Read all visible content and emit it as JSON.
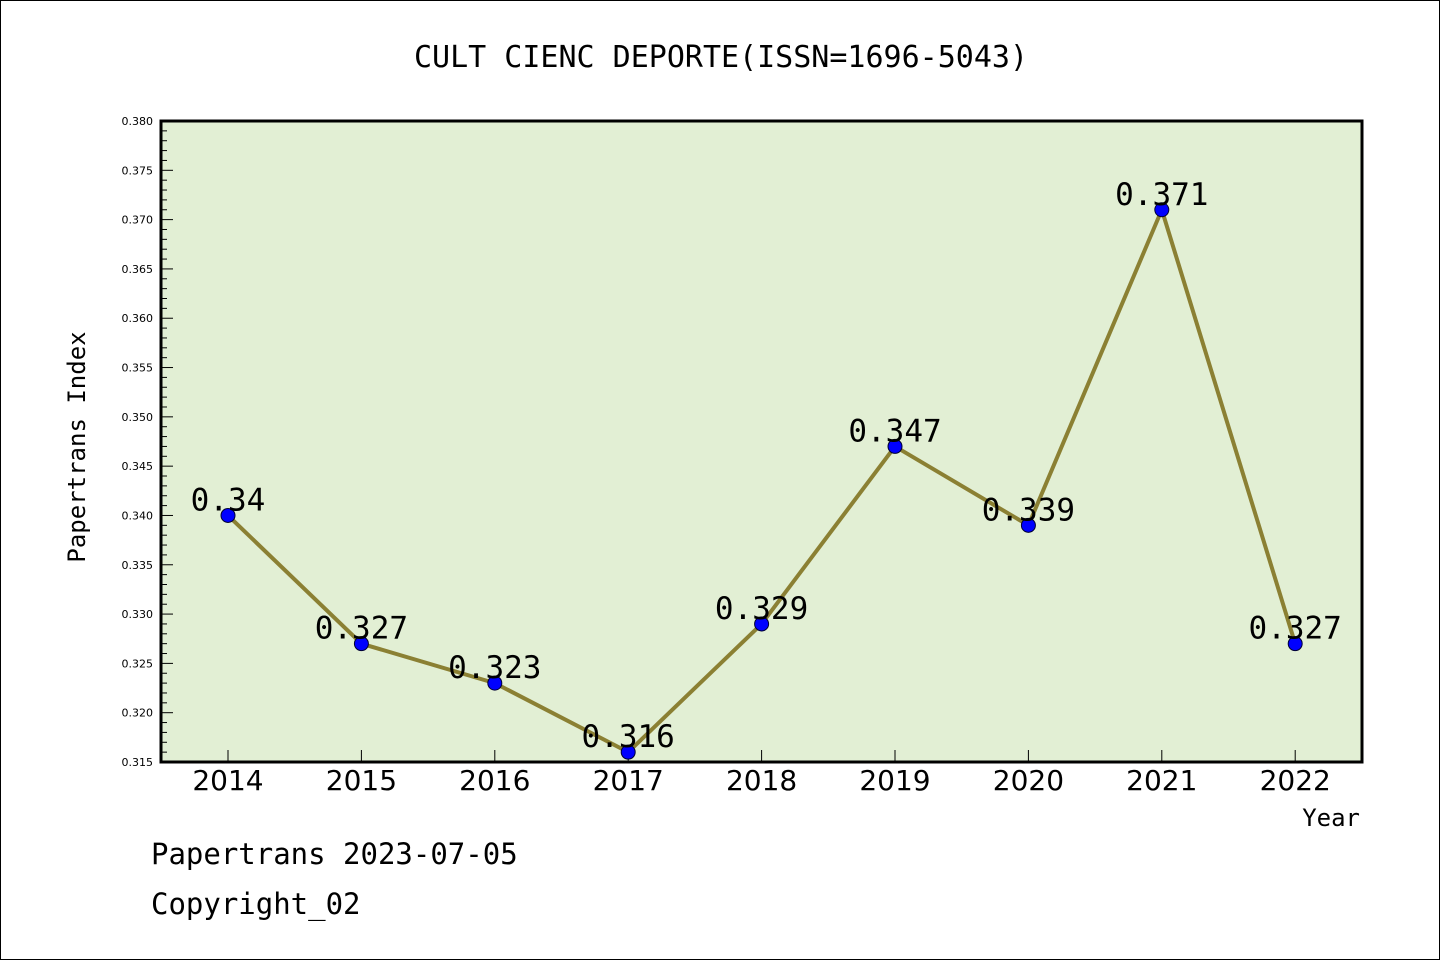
{
  "chart_data": {
    "type": "line",
    "title": "CULT CIENC DEPORTE(ISSN=1696-5043)",
    "xlabel": "Year",
    "ylabel": "Papertrans Index",
    "categories": [
      "2014",
      "2015",
      "2016",
      "2017",
      "2018",
      "2019",
      "2020",
      "2021",
      "2022"
    ],
    "series": [
      {
        "values": [
          0.34,
          0.327,
          0.323,
          0.316,
          0.329,
          0.347,
          0.339,
          0.371,
          0.327
        ],
        "labels": [
          "0.34",
          "0.327",
          "0.323",
          "0.316",
          "0.329",
          "0.347",
          "0.339",
          "0.371",
          "0.327"
        ]
      }
    ],
    "yticks": [
      "0.315",
      "0.320",
      "0.325",
      "0.330",
      "0.335",
      "0.340",
      "0.345",
      "0.350",
      "0.355",
      "0.360",
      "0.365",
      "0.370",
      "0.375",
      "0.380"
    ],
    "ylim": [
      0.315,
      0.38
    ],
    "grid": false,
    "colors": {
      "plot_background": "#e2efd4",
      "line": "#8b8033",
      "marker": "#0000ff",
      "marker_edge": "#000033"
    }
  },
  "footer": {
    "line1": "Papertrans 2023-07-05",
    "line2": "Copyright_02"
  }
}
